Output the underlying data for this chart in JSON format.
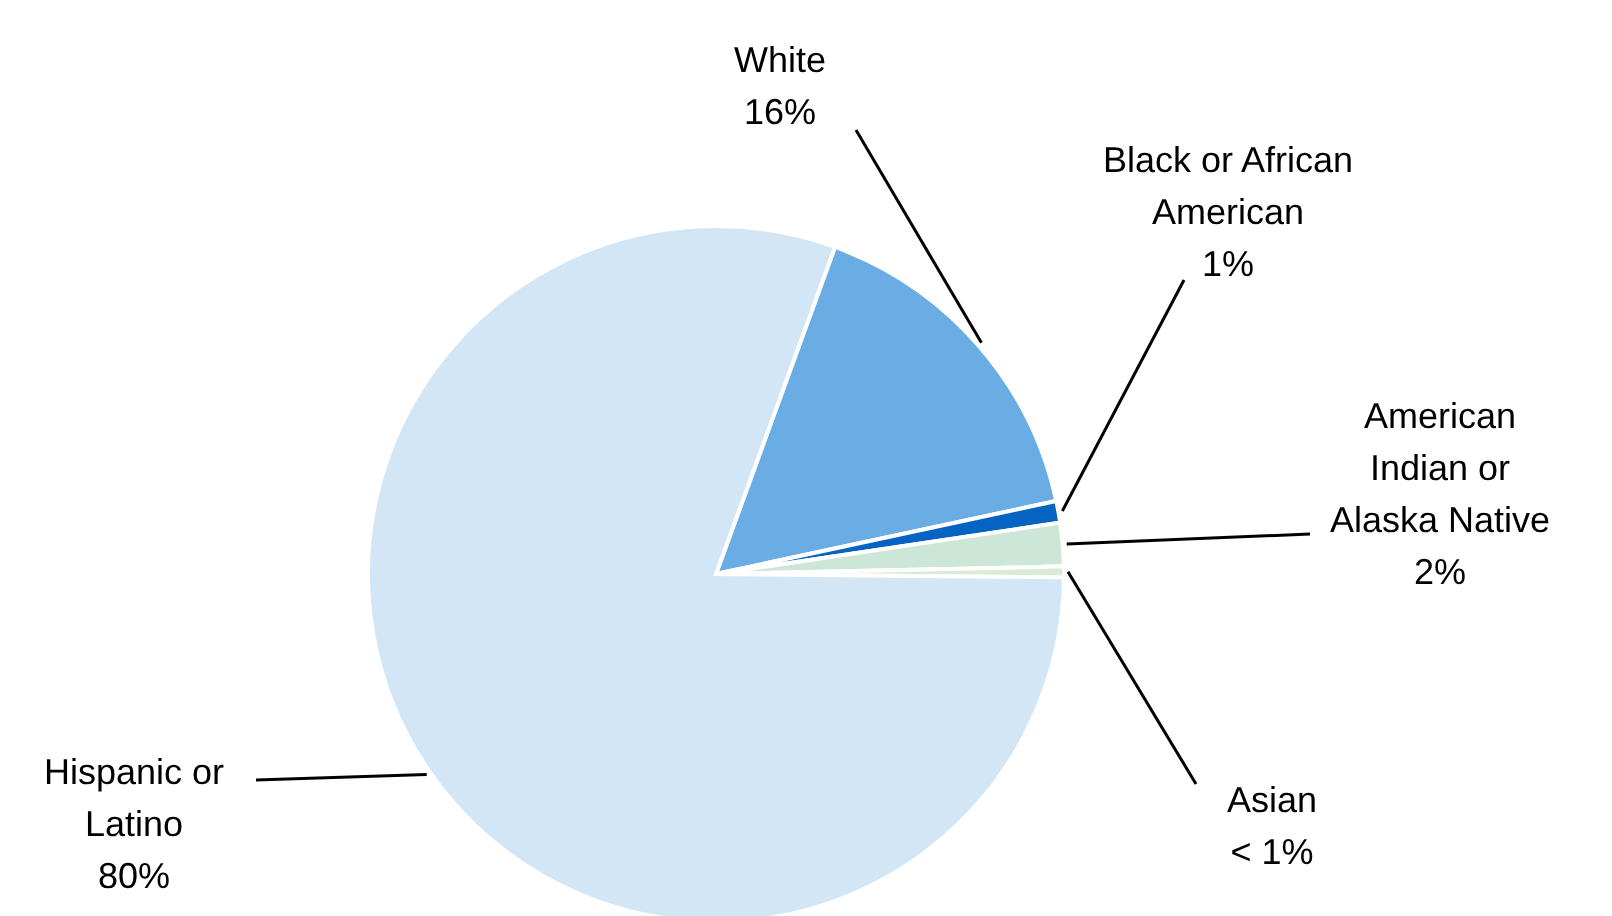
{
  "chart_data": {
    "type": "pie",
    "categories": [
      "White",
      "Black or African American",
      "American Indian or Alaska Native",
      "Asian",
      "Hispanic or Latino"
    ],
    "values": [
      16,
      1,
      2,
      0.5,
      80
    ],
    "value_labels": [
      "16%",
      "1%",
      "2%",
      "< 1%",
      "80%"
    ],
    "colors": [
      "#6aade4",
      "#0563c1",
      "#cce6d8",
      "#d9ebd5",
      "#d3e6f6"
    ]
  }
}
